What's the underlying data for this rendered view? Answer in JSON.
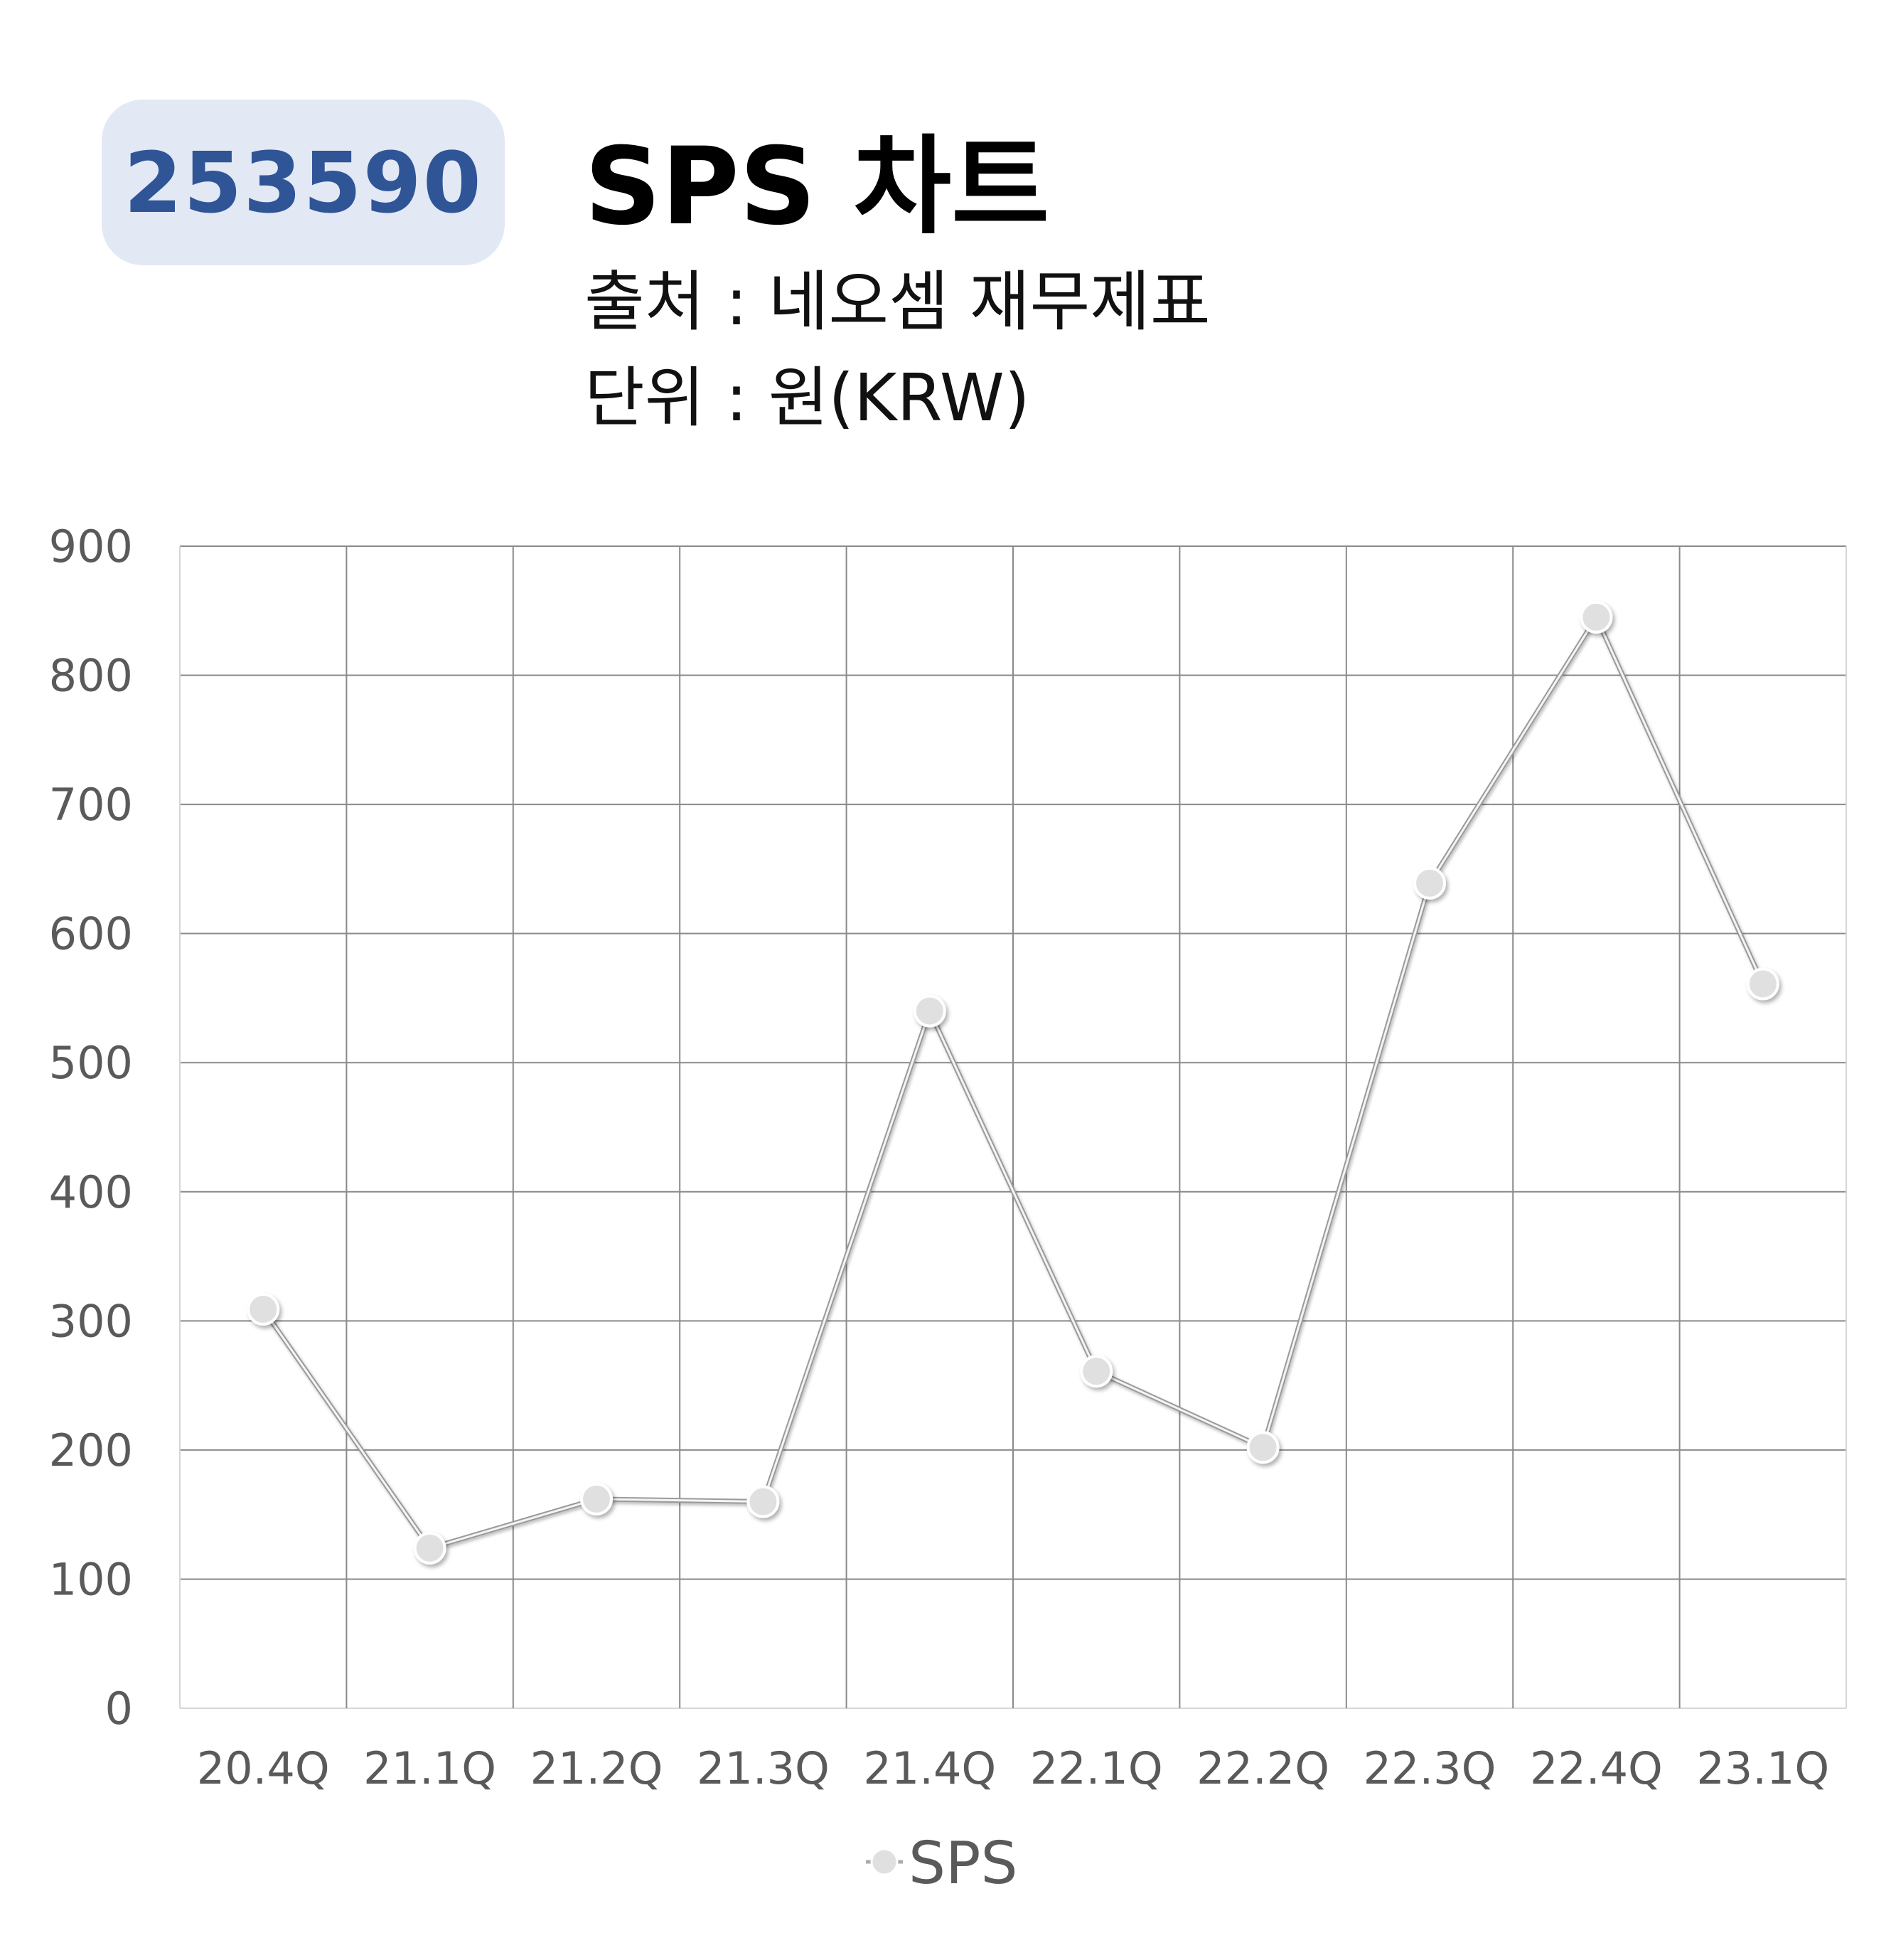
{
  "badge": {
    "code": "253590"
  },
  "header": {
    "title": "SPS 차트",
    "source": "출처 : 네오셈 재무제표",
    "unit": "단위 : 원(KRW)"
  },
  "chart_data": {
    "type": "line",
    "categories": [
      "20.4Q",
      "21.1Q",
      "21.2Q",
      "21.3Q",
      "21.4Q",
      "22.1Q",
      "22.2Q",
      "22.3Q",
      "22.4Q",
      "23.1Q"
    ],
    "series": [
      {
        "name": "SPS",
        "values": [
          309,
          124,
          162,
          160,
          540,
          261,
          202,
          639,
          845,
          561
        ],
        "color": "#c8c8c8",
        "marker_color": "#e0e0e0"
      }
    ],
    "ylim": [
      0,
      900
    ],
    "yticks": [
      0,
      100,
      200,
      300,
      400,
      500,
      600,
      700,
      800,
      900
    ],
    "grid": true,
    "legend_position": "bottom"
  }
}
